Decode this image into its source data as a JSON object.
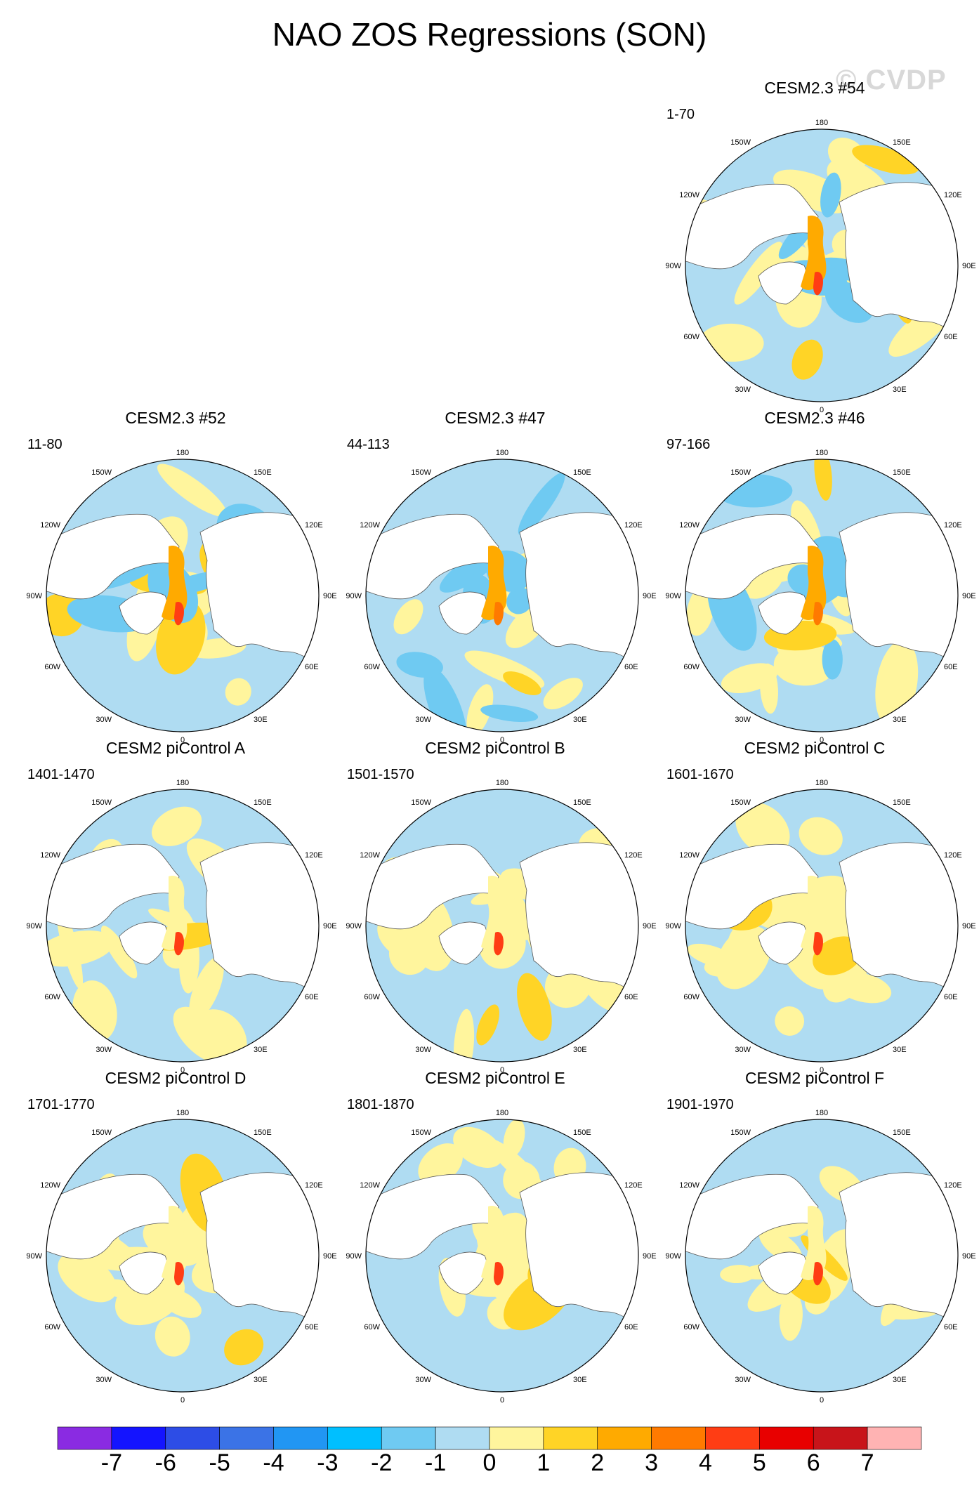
{
  "title": "NAO ZOS Regressions (SON)",
  "watermark": "© CVDP",
  "lon_labels": {
    "top": "180",
    "bottom": "0",
    "left": "90W",
    "right": "90E",
    "upper_left": "150W",
    "upper_left2": "120W",
    "upper_right": "150E",
    "upper_right2": "120E",
    "lower_left": "60W",
    "lower_left2": "30W",
    "lower_right": "60E",
    "lower_right2": "30E"
  },
  "panels": [
    {
      "title": "CESM2.3 #54",
      "years": "1-70",
      "style": "warm"
    },
    {
      "title": "CESM2.3 #52",
      "years": "11-80",
      "style": "warm"
    },
    {
      "title": "CESM2.3 #47",
      "years": "44-113",
      "style": "cool"
    },
    {
      "title": "CESM2.3 #46",
      "years": "97-166",
      "style": "mixed"
    },
    {
      "title": "CESM2 piControl A",
      "years": "1401-1470",
      "style": "pi"
    },
    {
      "title": "CESM2 piControl B",
      "years": "1501-1570",
      "style": "pi"
    },
    {
      "title": "CESM2 piControl C",
      "years": "1601-1670",
      "style": "pi"
    },
    {
      "title": "CESM2 piControl D",
      "years": "1701-1770",
      "style": "pi"
    },
    {
      "title": "CESM2 piControl E",
      "years": "1801-1870",
      "style": "pi"
    },
    {
      "title": "CESM2 piControl F",
      "years": "1901-1970",
      "style": "pi"
    }
  ],
  "colorbar": {
    "colors": [
      "#8a2be2",
      "#1414ff",
      "#2d4de6",
      "#3b73e6",
      "#2196f3",
      "#00bfff",
      "#6fcaf2",
      "#afdcf2",
      "#fff59d",
      "#ffd426",
      "#ffaa00",
      "#ff7a00",
      "#ff3d14",
      "#e80000",
      "#c8141a",
      "#ffb3b3"
    ],
    "labels": [
      "-7",
      "-6",
      "-5",
      "-4",
      "-3",
      "-2",
      "-1",
      "0",
      "1",
      "2",
      "3",
      "4",
      "5",
      "6",
      "7"
    ]
  }
}
